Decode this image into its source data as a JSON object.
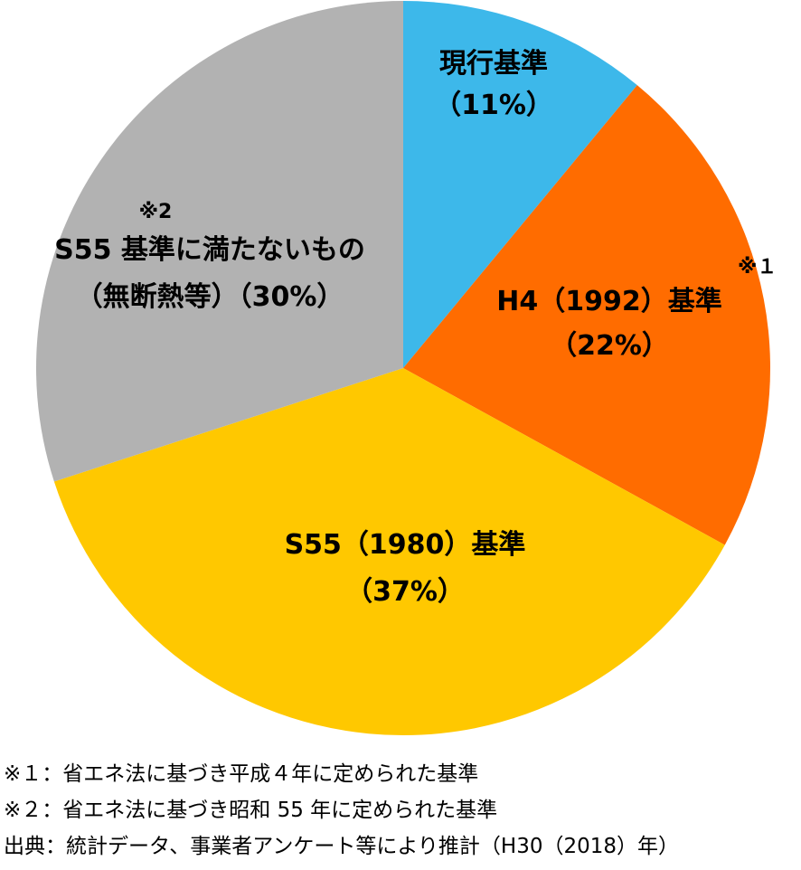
{
  "chart_data": {
    "type": "pie",
    "slices": [
      {
        "label": "現行基準",
        "pct_label": "（11%）",
        "value": 11,
        "color": "#3db8ea",
        "note": ""
      },
      {
        "label": "H4（1992）基準",
        "pct_label": "（22%）",
        "value": 22,
        "color": "#ff6c00",
        "note": "※１"
      },
      {
        "label": "S55（1980）基準",
        "pct_label": "（37%）",
        "value": 37,
        "color": "#ffc800",
        "note": ""
      },
      {
        "label": "S55 基準に満たないもの",
        "pct_label": "（無断熱等）（30%）",
        "value": 30,
        "color": "#b2b2b2",
        "note": "※2"
      }
    ],
    "start_angle_deg": 0,
    "direction": "clockwise"
  },
  "footnotes": [
    "※１：省エネ法に基づき平成４年に定められた基準",
    "※２：省エネ法に基づき昭和 55 年に定められた基準",
    "出典：統計データ、事業者アンケート等により推計（H30（2018）年）"
  ]
}
